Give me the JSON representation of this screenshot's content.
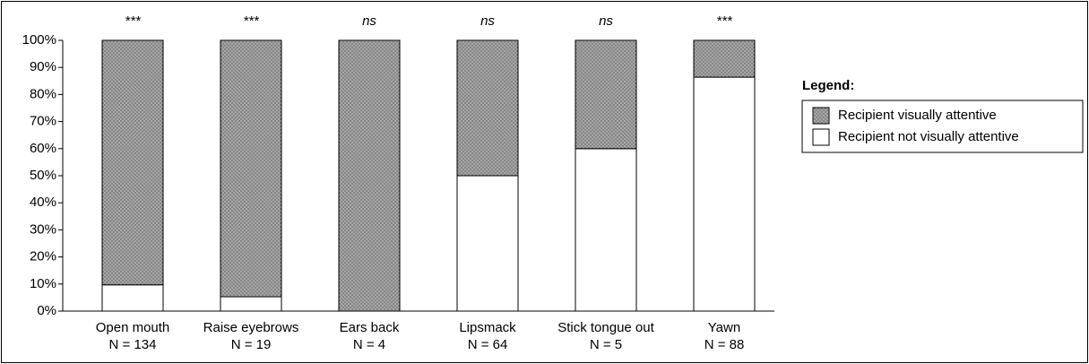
{
  "chart_data": {
    "type": "stacked_bar",
    "categories": [
      "Open mouth",
      "Raise eyebrows",
      "Ears back",
      "Lipsmack",
      "Stick tongue out",
      "Yawn"
    ],
    "sample_sizes": [
      "N = 134",
      "N = 19",
      "N = 4",
      "N = 64",
      "N = 5",
      "N = 88"
    ],
    "significance": [
      "***",
      "***",
      "ns",
      "ns",
      "ns",
      "***"
    ],
    "series": [
      {
        "name": "Recipient not visually attentive",
        "color": "#ffffff",
        "values": [
          9.7,
          5.3,
          0,
          50,
          60,
          86.4
        ]
      },
      {
        "name": "Recipient visually attentive",
        "color": "#a6a6a6",
        "pattern": "dots",
        "values": [
          90.3,
          94.7,
          100,
          50,
          40,
          13.6
        ]
      }
    ],
    "ylim": [
      0,
      100
    ],
    "yticks": [
      {
        "value": 0,
        "label": "0%"
      },
      {
        "value": 10,
        "label": "10%"
      },
      {
        "value": 20,
        "label": "20%"
      },
      {
        "value": 30,
        "label": "30%"
      },
      {
        "value": 40,
        "label": "40%"
      },
      {
        "value": 50,
        "label": "50%"
      },
      {
        "value": 60,
        "label": "60%"
      },
      {
        "value": 70,
        "label": "70%"
      },
      {
        "value": 80,
        "label": "80%"
      },
      {
        "value": 90,
        "label": "90%"
      },
      {
        "value": 100,
        "label": "100%"
      }
    ],
    "legend_title": "Legend:",
    "legend_position": "right"
  }
}
